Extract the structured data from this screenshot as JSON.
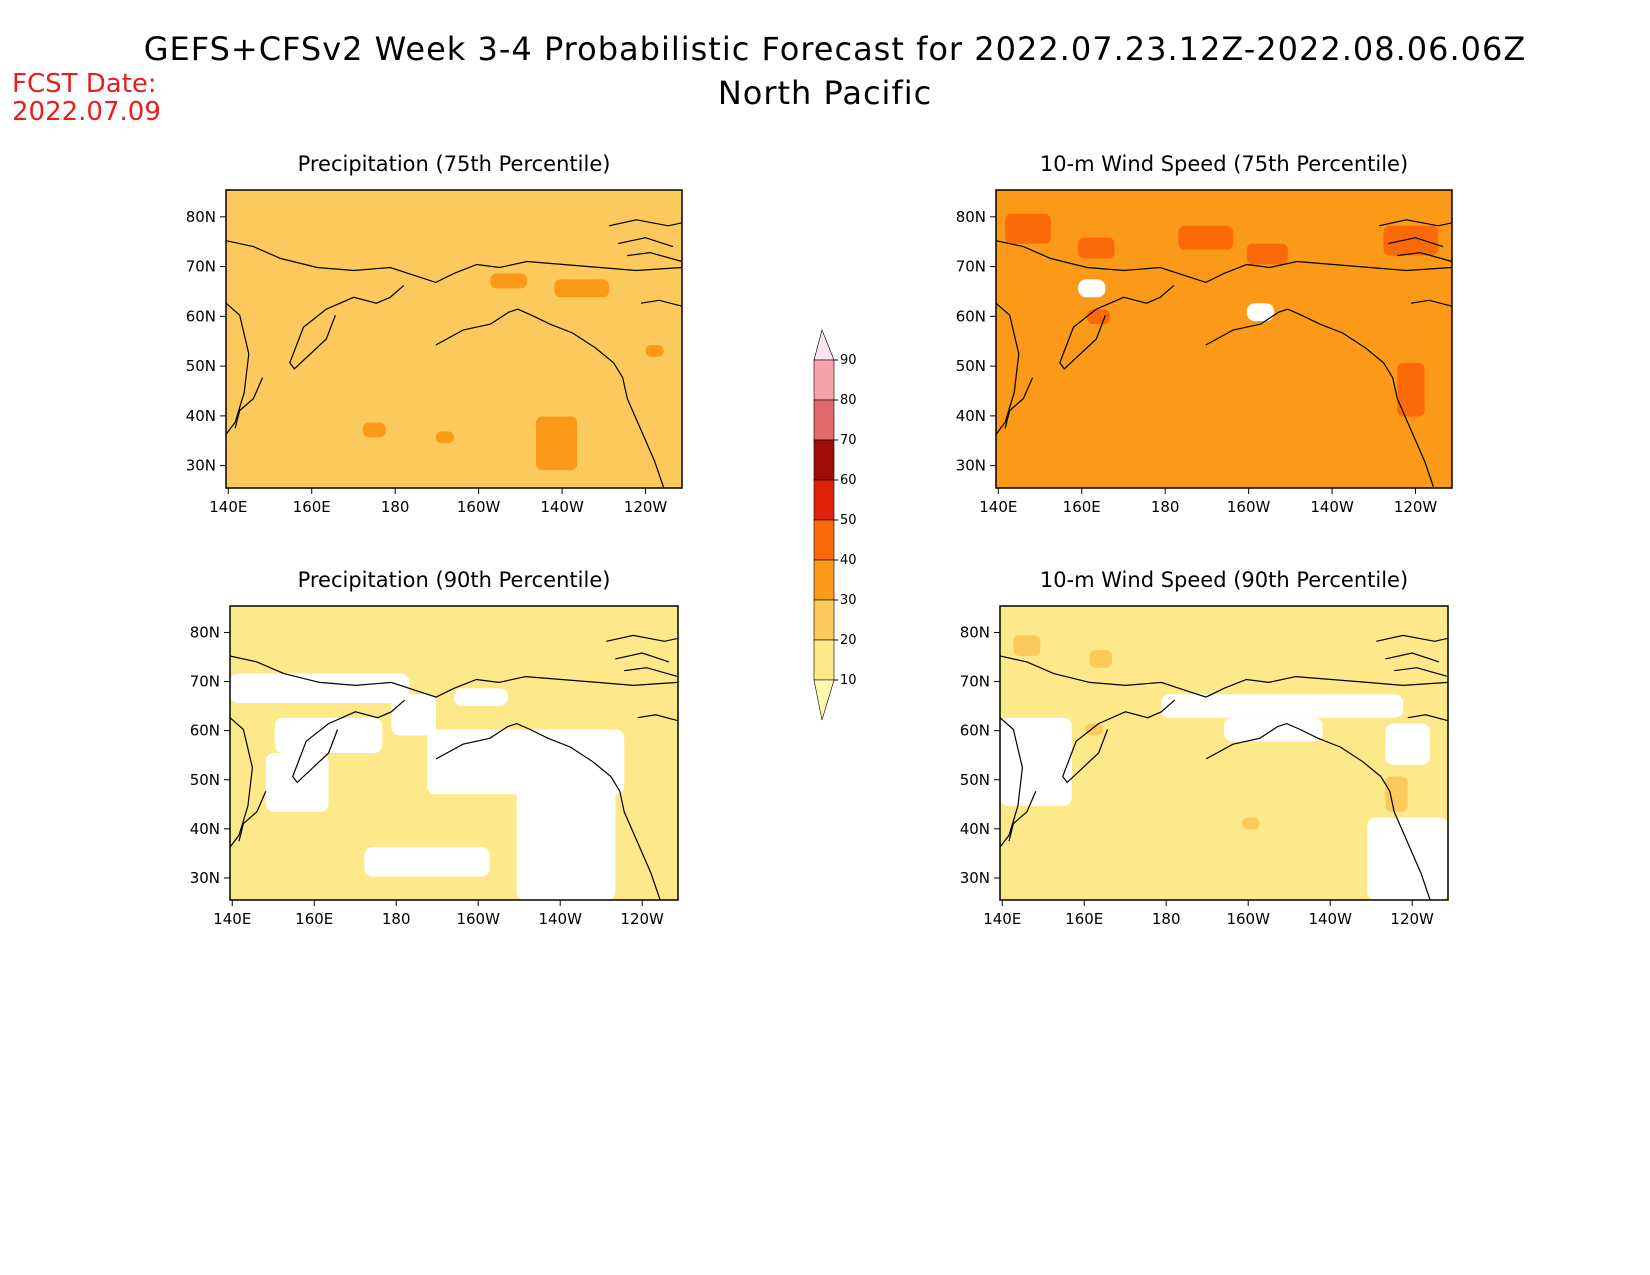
{
  "header": {
    "title": "GEFS+CFSv2 Week 3-4 Probabilistic Forecast for 2022.07.23.12Z-2022.08.06.06Z",
    "subtitle": "North Pacific",
    "fcst_label": "FCST Date:",
    "fcst_date": "2022.07.09"
  },
  "axes": {
    "lat_labels": [
      "80N",
      "70N",
      "60N",
      "50N",
      "40N",
      "30N"
    ],
    "lon_labels": [
      "140E",
      "160E",
      "180",
      "160W",
      "140W",
      "120W"
    ]
  },
  "colorbar": {
    "levels": [
      "10",
      "20",
      "30",
      "40",
      "50",
      "60",
      "70",
      "80",
      "90"
    ],
    "colors": [
      "#fff9b0",
      "#fde98a",
      "#fcc95c",
      "#fb9a18",
      "#fb6a08",
      "#e0220a",
      "#a00c08",
      "#e06a6a",
      "#f5a3a8",
      "#fde4ec"
    ]
  },
  "panels": [
    {
      "id": "precip-75",
      "title": "Precipitation (75th Percentile)",
      "base_level": 2,
      "blotch_level": 3
    },
    {
      "id": "wind-75",
      "title": "10-m Wind Speed (75th Percentile)",
      "base_level": 3,
      "blotch_level": 4
    },
    {
      "id": "precip-90",
      "title": "Precipitation (90th Percentile)",
      "base_level": 1,
      "blotch_level": 0
    },
    {
      "id": "wind-90",
      "title": "10-m Wind Speed (90th Percentile)",
      "base_level": 1,
      "blotch_level": 2
    }
  ]
}
